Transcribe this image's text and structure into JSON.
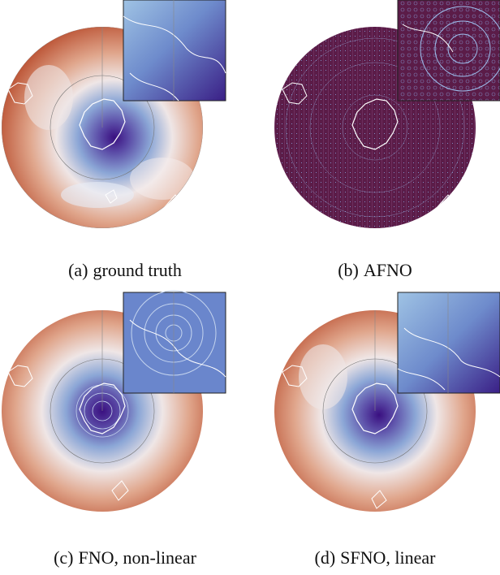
{
  "figure": {
    "panels": [
      {
        "id": "a",
        "label": "(a)",
        "caption": "ground truth",
        "field": "smooth"
      },
      {
        "id": "b",
        "label": "(b)",
        "caption": "AFNO",
        "field": "noisy"
      },
      {
        "id": "c",
        "label": "(c)",
        "caption": "FNO, non-linear",
        "field": "ringing"
      },
      {
        "id": "d",
        "label": "(d)",
        "caption": "SFNO, linear",
        "field": "smooth"
      }
    ],
    "colors": {
      "warm": "#c25b38",
      "mid": "#f2e9e6",
      "cool": "#4d77c4",
      "deep": "#3a0f80",
      "afno_bg": "#5b1c48",
      "coast": "#ffffff"
    }
  }
}
